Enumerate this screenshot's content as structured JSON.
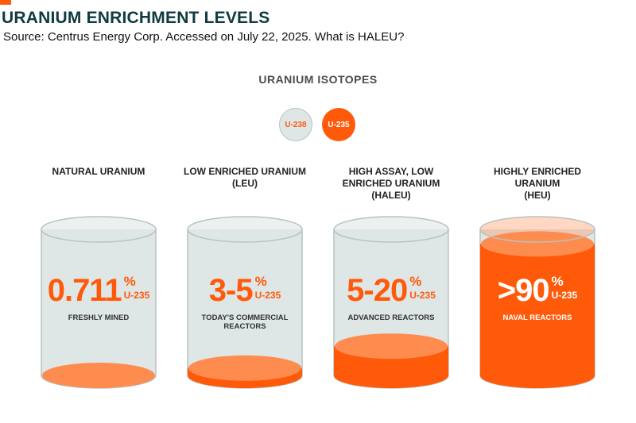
{
  "header": {
    "title": "URANIUM ENRICHMENT LEVELS",
    "source": "Source: Centrus Energy Corp. Accessed on July 22, 2025. What is HALEU?"
  },
  "isotopes": {
    "heading": "URANIUM ISOTOPES",
    "items": [
      {
        "label": "U-238",
        "color": "#dfe6e6"
      },
      {
        "label": "U-235",
        "color": "#ff5a0a"
      }
    ]
  },
  "colors": {
    "accent": "#ff5a0a",
    "fill_light": "#ff8c4f",
    "glass": "#dfe6e6",
    "glass_stroke": "#b8c2c2",
    "title": "#0f3a40"
  },
  "levels": [
    {
      "label": "NATURAL URANIUM",
      "value": "0.711",
      "unit": "%",
      "isotope": "U-235",
      "description": "FRESHLY MINED",
      "fill_fraction": 0.0
    },
    {
      "label": "LOW ENRICHED URANIUM\n(LEU)",
      "value": "3-5",
      "unit": "%",
      "isotope": "U-235",
      "description": "TODAY'S COMMERCIAL\nREACTORS",
      "fill_fraction": 0.05
    },
    {
      "label": "HIGH ASSAY, LOW\nENRICHED URANIUM\n(HALEU)",
      "value": "5-20",
      "unit": "%",
      "isotope": "U-235",
      "description": "ADVANCED REACTORS",
      "fill_fraction": 0.2
    },
    {
      "label": "HIGHLY ENRICHED\nURANIUM\n(HEU)",
      "value": ">90",
      "unit": "%",
      "isotope": "U-235",
      "description": "NAVAL REACTORS",
      "fill_fraction": 0.9
    }
  ]
}
